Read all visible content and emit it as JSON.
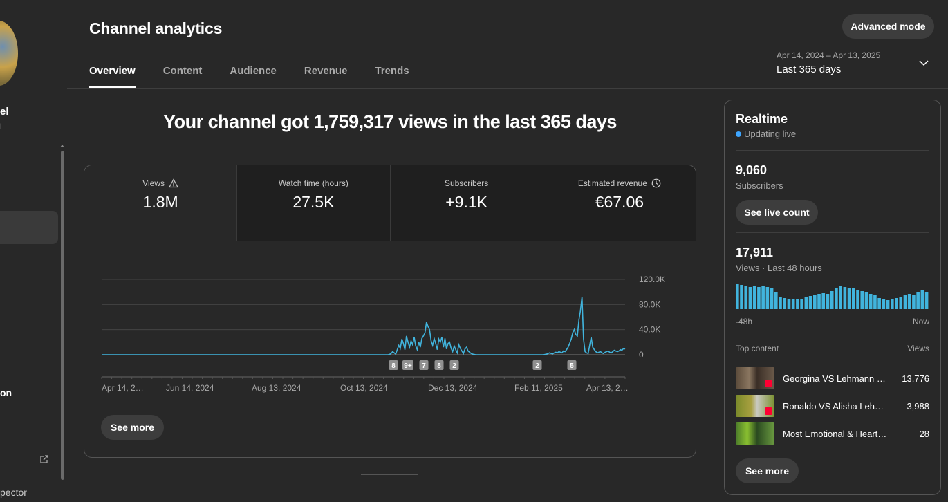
{
  "sidebar": {
    "channel_name_fragment": "el",
    "channel_sub_fragment": "l",
    "item_fragment": "on",
    "inspector_fragment": "pector"
  },
  "header": {
    "title": "Channel analytics",
    "advanced_mode_label": "Advanced mode",
    "tabs": [
      {
        "label": "Overview",
        "active": true
      },
      {
        "label": "Content",
        "active": false
      },
      {
        "label": "Audience",
        "active": false
      },
      {
        "label": "Revenue",
        "active": false
      },
      {
        "label": "Trends",
        "active": false
      }
    ],
    "date_range": "Apr 14, 2024 – Apr 13, 2025",
    "date_label": "Last 365 days"
  },
  "headline": "Your channel got 1,759,317 views in the last 365 days",
  "metrics": [
    {
      "label": "Views",
      "value": "1.8M",
      "icon": "warning-icon"
    },
    {
      "label": "Watch time (hours)",
      "value": "27.5K",
      "icon": ""
    },
    {
      "label": "Subscribers",
      "value": "+9.1K",
      "icon": ""
    },
    {
      "label": "Estimated revenue",
      "value": "€67.06",
      "icon": "clock-icon"
    }
  ],
  "see_more_label": "See more",
  "chart_data": {
    "type": "line",
    "series": [
      {
        "values": [
          0,
          0,
          0,
          0,
          0,
          0,
          0,
          0,
          0,
          0,
          0,
          0,
          0,
          0,
          0,
          0,
          0,
          0,
          0,
          0,
          0,
          0,
          0,
          0,
          0,
          0,
          0,
          0,
          0,
          0,
          0,
          0,
          0,
          0,
          0,
          0,
          0,
          0,
          0,
          0,
          0,
          0,
          0,
          0,
          0,
          0,
          0,
          0,
          0,
          0,
          0,
          0,
          0,
          0,
          0,
          0,
          0,
          0,
          0,
          0,
          0,
          0,
          0,
          0,
          0,
          0,
          0,
          0,
          0,
          0,
          0,
          0,
          0,
          0,
          0,
          0,
          0,
          0,
          0,
          0,
          0,
          0,
          0,
          0,
          0,
          0,
          0,
          0,
          0,
          0,
          0,
          0,
          0,
          0,
          0,
          0,
          0,
          0,
          0,
          0,
          0,
          0,
          0,
          0,
          0,
          0,
          0,
          0,
          0,
          0,
          0,
          0,
          0,
          0,
          0,
          0,
          0,
          0,
          0,
          0,
          0,
          0,
          0,
          0,
          0,
          0,
          0,
          0,
          0,
          0,
          0,
          0,
          0,
          0,
          0,
          0,
          0,
          0,
          0,
          0,
          0,
          0,
          0,
          0,
          0,
          0,
          0,
          0,
          0,
          0,
          0,
          0,
          0,
          0,
          0,
          0,
          0,
          0,
          0,
          0,
          0,
          0,
          0,
          0,
          0,
          0,
          0,
          0,
          0,
          0,
          0,
          0,
          0,
          0,
          0,
          0,
          0,
          0,
          0,
          0,
          0,
          0,
          0,
          0,
          0,
          0,
          0,
          500,
          2000,
          5000,
          3000,
          1000,
          8000,
          15000,
          10000,
          25000,
          18000,
          8000,
          30000,
          20000,
          12000,
          22000,
          16000,
          28000,
          14000,
          8000,
          20000,
          12000,
          26000,
          30000,
          35000,
          52000,
          45000,
          40000,
          22000,
          15000,
          26000,
          18000,
          8000,
          25000,
          20000,
          28000,
          12000,
          26000,
          9000,
          18000,
          20000,
          10000,
          5000,
          14000,
          8000,
          3000,
          16000,
          10000,
          6000,
          2000,
          9000,
          12000,
          6000,
          4000,
          2000,
          1000,
          500,
          0,
          0,
          0,
          0,
          0,
          0,
          0,
          0,
          0,
          0,
          0,
          0,
          0,
          0,
          0,
          0,
          0,
          0,
          0,
          0,
          0,
          0,
          0,
          0,
          0,
          0,
          0,
          0,
          0,
          0,
          0,
          0,
          0,
          0,
          0,
          0,
          0,
          0,
          0,
          0,
          0,
          0,
          0,
          0,
          0,
          500,
          1000,
          2000,
          3000,
          2000,
          1500,
          3000,
          4000,
          3000,
          5000,
          4000,
          3000,
          6000,
          5000,
          8000,
          12000,
          18000,
          25000,
          35000,
          40000,
          32000,
          30000,
          55000,
          70000,
          92000,
          25000,
          5000,
          3000,
          2000,
          15000,
          28000,
          12000,
          8000,
          5000,
          3000,
          4000,
          5000,
          3000,
          2000,
          4000,
          5000,
          6000,
          4000,
          3000,
          5000,
          7000,
          6000,
          5000,
          6000,
          8000,
          7000,
          10000,
          9000
        ]
      }
    ],
    "x_tick_labels": [
      "Apr 14, 2…",
      "Jun 14, 2024",
      "Aug 13, 2024",
      "Oct 13, 2024",
      "Dec 13, 2024",
      "Feb 11, 2025",
      "Apr 13, 2…"
    ],
    "y_tick_labels": [
      "120.0K",
      "80.0K",
      "40.0K",
      "0"
    ],
    "ylim": [
      0,
      120000
    ],
    "markers": [
      "8",
      "9+",
      "7",
      "8",
      "2",
      "2",
      "5"
    ],
    "grid": true
  },
  "realtime": {
    "title": "Realtime",
    "live_label": "Updating live",
    "subscribers_value": "9,060",
    "subscribers_label": "Subscribers",
    "live_count_label": "See live count",
    "views_value": "17,911",
    "views_label": "Views · Last 48 hours",
    "bars": [
      36,
      35,
      33,
      32,
      33,
      32,
      33,
      32,
      30,
      24,
      18,
      16,
      15,
      14,
      14,
      15,
      17,
      19,
      21,
      22,
      23,
      22,
      26,
      30,
      33,
      32,
      31,
      30,
      28,
      26,
      24,
      22,
      20,
      16,
      14,
      13,
      14,
      16,
      18,
      20,
      22,
      21,
      24,
      28,
      25
    ],
    "axis_left": "-48h",
    "axis_right": "Now",
    "top_content_label": "Top content",
    "views_header": "Views",
    "top_content": [
      {
        "title": "Georgina VS Lehmann V…",
        "views": "13,776"
      },
      {
        "title": "Ronaldo VS Alisha Lehm…",
        "views": "3,988"
      },
      {
        "title": "Most Emotional & Heartbrea…",
        "views": "28"
      }
    ],
    "see_more_label": "See more"
  },
  "colors": {
    "accent": "#3ea6ff",
    "line": "#41b4dd",
    "marker": "#909090"
  }
}
